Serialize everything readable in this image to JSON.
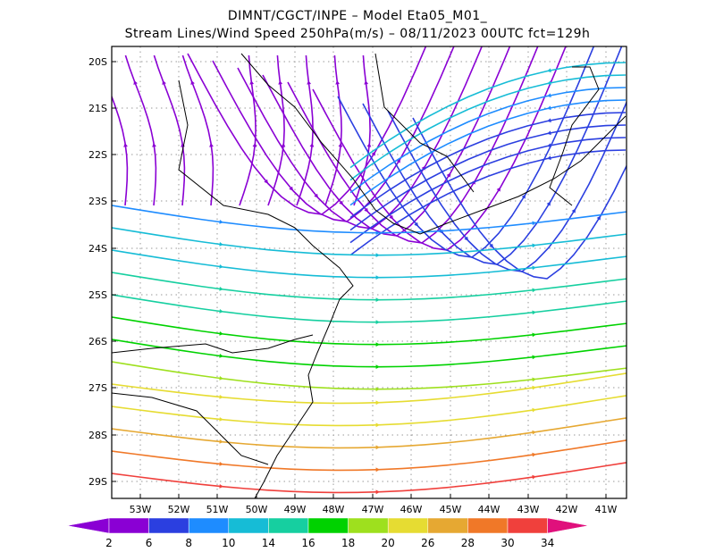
{
  "title_line1": "DIMNT/CGCT/INPE  –   Model Eta05_M01_",
  "title_line2": "Stream Lines/Wind Speed 250hPa(m/s)  –   08/11/2023 00UTC fct=129h",
  "map": {
    "lon_range": [
      -53.8,
      -40.6
    ],
    "lat_range": [
      -29.4,
      -19.8
    ],
    "lat_ticks": [
      "20S",
      "21S",
      "22S",
      "23S",
      "24S",
      "25S",
      "26S",
      "27S",
      "28S",
      "29S"
    ],
    "lon_ticks": [
      "53W",
      "52W",
      "51W",
      "50W",
      "49W",
      "48W",
      "47W",
      "46W",
      "45W",
      "44W",
      "43W",
      "42W",
      "41W"
    ],
    "grid": "dotted",
    "linework_color": "#000000"
  },
  "colorbar": {
    "levels": [
      "2",
      "6",
      "8",
      "10",
      "14",
      "16",
      "18",
      "20",
      "26",
      "28",
      "30",
      "34"
    ],
    "colors": [
      "#8a00d4",
      "#8a00d4",
      "#2b3fe0",
      "#1e8cff",
      "#16bcd6",
      "#16cfa0",
      "#00d200",
      "#9ee01e",
      "#e6dc32",
      "#e6a832",
      "#f07828",
      "#f0403c",
      "#e0107c"
    ]
  }
}
